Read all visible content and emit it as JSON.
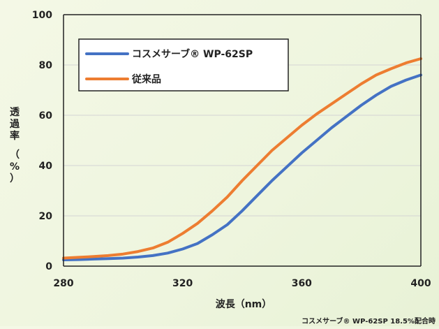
{
  "chart_data": {
    "type": "line",
    "xlabel": "波長（nm）",
    "ylabel": "透過率（%）",
    "xlim": [
      280,
      400
    ],
    "ylim": [
      0,
      100
    ],
    "xticks": [
      "280",
      "320",
      "360",
      "400"
    ],
    "yticks": [
      "0",
      "20",
      "40",
      "60",
      "80",
      "100"
    ],
    "grid": true,
    "legend_position": "top-left",
    "series": [
      {
        "name": "コスメサーブ® WP-62SP",
        "color": "#4472C4",
        "x": [
          280,
          285,
          290,
          295,
          300,
          305,
          310,
          315,
          320,
          325,
          330,
          335,
          340,
          345,
          350,
          355,
          360,
          365,
          370,
          375,
          380,
          385,
          390,
          395,
          400
        ],
        "y": [
          2.5,
          2.6,
          2.8,
          3.0,
          3.2,
          3.6,
          4.2,
          5.2,
          6.8,
          9.0,
          12.5,
          16.5,
          22,
          28,
          34,
          39.5,
          45,
          50,
          55,
          59.5,
          64,
          68,
          71.5,
          74,
          76
        ]
      },
      {
        "name": "従来品",
        "color": "#ED7D31",
        "x": [
          280,
          285,
          290,
          295,
          300,
          305,
          310,
          315,
          320,
          325,
          330,
          335,
          340,
          345,
          350,
          355,
          360,
          365,
          370,
          375,
          380,
          385,
          390,
          395,
          400
        ],
        "y": [
          3.2,
          3.5,
          3.8,
          4.2,
          4.8,
          5.8,
          7.2,
          9.5,
          13,
          17,
          22,
          27.5,
          34,
          40,
          46,
          51,
          56,
          60.5,
          64.5,
          68.5,
          72.5,
          76,
          78.5,
          80.8,
          82.5
        ]
      }
    ]
  },
  "footnote": "コスメサーブ® WP-62SP 18.5%配合時"
}
